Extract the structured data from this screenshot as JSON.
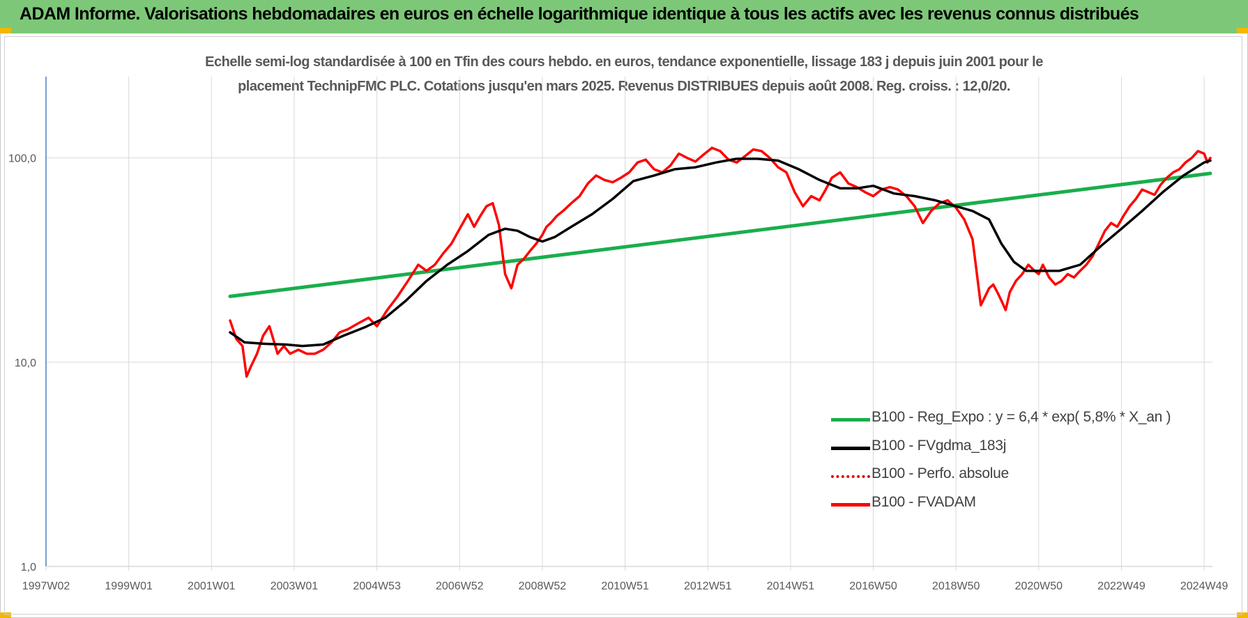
{
  "banner": {
    "title": "ADAM Informe. Valorisations hebdomadaires en euros en échelle logarithmique identique à tous les actifs avec les revenus connus distribués"
  },
  "colors": {
    "banner_bg": "#7dc878",
    "reg_expo": "#1aae4c",
    "fvgdma": "#000000",
    "perfo": "#e00000",
    "fvadam": "#ff0000",
    "grid": "#d9d9d9",
    "axis": "#4a7ebb"
  },
  "chart_data": {
    "type": "line",
    "scale": "log",
    "title": "Echelle semi-log standardisée à 100 en Tfin des cours hebdo. en euros, tendance exponentielle, lissage 183 j depuis juin 2001 pour le",
    "subtitle": "placement TechnipFMC PLC. Cotations jusqu'en mars 2025. Revenus DISTRIBUES depuis août 2008. Reg. croiss. : 12,0/20.",
    "x_unit": "year",
    "xlim": [
      1997.0,
      2025.2
    ],
    "ylim": [
      1,
      250
    ],
    "y_ticks": [
      {
        "value": 1,
        "label": "1,0"
      },
      {
        "value": 10,
        "label": "10,0"
      },
      {
        "value": 100,
        "label": "100,0"
      }
    ],
    "x_ticks": [
      {
        "value": 1997.0,
        "label": "1997W02"
      },
      {
        "value": 1999.0,
        "label": "1999W01"
      },
      {
        "value": 2001.0,
        "label": "2001W01"
      },
      {
        "value": 2003.0,
        "label": "2003W01"
      },
      {
        "value": 2005.0,
        "label": "2004W53"
      },
      {
        "value": 2007.0,
        "label": "2006W52"
      },
      {
        "value": 2009.0,
        "label": "2008W52"
      },
      {
        "value": 2011.0,
        "label": "2010W51"
      },
      {
        "value": 2013.0,
        "label": "2012W51"
      },
      {
        "value": 2015.0,
        "label": "2014W51"
      },
      {
        "value": 2017.0,
        "label": "2016W50"
      },
      {
        "value": 2019.0,
        "label": "2018W50"
      },
      {
        "value": 2021.0,
        "label": "2020W50"
      },
      {
        "value": 2023.0,
        "label": "2022W49"
      },
      {
        "value": 2025.0,
        "label": "2024W49"
      }
    ],
    "series": [
      {
        "name": "B100 - Reg_Expo : y = 6,4 * exp( 5,8% *  X_an )",
        "color": "#1aae4c",
        "style": "solid",
        "width": 5,
        "x": [
          2001.45,
          2025.15
        ],
        "y": [
          21,
          84
        ]
      },
      {
        "name": "B100 - FVgdma_183j",
        "color": "#000000",
        "style": "solid",
        "width": 3.5,
        "x": [
          2001.45,
          2001.8,
          2002.3,
          2002.8,
          2003.2,
          2003.7,
          2004.2,
          2004.7,
          2005.2,
          2005.7,
          2006.2,
          2006.7,
          2007.2,
          2007.7,
          2008.1,
          2008.4,
          2008.7,
          2009.0,
          2009.3,
          2009.7,
          2010.2,
          2010.7,
          2011.2,
          2011.7,
          2012.2,
          2012.7,
          2013.2,
          2013.7,
          2014.2,
          2014.7,
          2015.2,
          2015.7,
          2016.2,
          2016.6,
          2017.0,
          2017.5,
          2018.0,
          2018.5,
          2019.0,
          2019.4,
          2019.8,
          2020.1,
          2020.4,
          2020.7,
          2021.0,
          2021.5,
          2022.0,
          2022.5,
          2023.0,
          2023.5,
          2024.0,
          2024.5,
          2025.0,
          2025.15
        ],
        "y": [
          14,
          12.5,
          12.3,
          12.2,
          12,
          12.2,
          13.5,
          14.8,
          16.5,
          20,
          25,
          30,
          35,
          42,
          45,
          44,
          41,
          39,
          41,
          46,
          53,
          63,
          77,
          82,
          88,
          90,
          95,
          99,
          99,
          97,
          88,
          78,
          71,
          71,
          73,
          67,
          65,
          62,
          58,
          55,
          50,
          38,
          31,
          28,
          28,
          28,
          30,
          37,
          45,
          55,
          68,
          82,
          95,
          97
        ]
      },
      {
        "name": "B100 - Perfo. absolue",
        "color": "#e00000",
        "style": "dotted",
        "width": 3,
        "x": [],
        "y": []
      },
      {
        "name": "B100 - FVADAM",
        "color": "#ff0000",
        "style": "solid",
        "width": 3.5,
        "x": [
          2001.45,
          2001.6,
          2001.75,
          2001.85,
          2001.95,
          2002.1,
          2002.25,
          2002.4,
          2002.6,
          2002.75,
          2002.9,
          2003.1,
          2003.3,
          2003.5,
          2003.7,
          2003.9,
          2004.1,
          2004.3,
          2004.55,
          2004.8,
          2005.0,
          2005.25,
          2005.5,
          2005.75,
          2006.0,
          2006.2,
          2006.4,
          2006.6,
          2006.8,
          2007.0,
          2007.2,
          2007.35,
          2007.5,
          2007.65,
          2007.8,
          2007.95,
          2008.1,
          2008.25,
          2008.4,
          2008.55,
          2008.7,
          2008.85,
          2009.0,
          2009.1,
          2009.2,
          2009.35,
          2009.5,
          2009.7,
          2009.9,
          2010.1,
          2010.3,
          2010.5,
          2010.7,
          2010.9,
          2011.1,
          2011.3,
          2011.5,
          2011.7,
          2011.9,
          2012.1,
          2012.3,
          2012.5,
          2012.7,
          2012.9,
          2013.1,
          2013.3,
          2013.5,
          2013.7,
          2013.9,
          2014.1,
          2014.3,
          2014.5,
          2014.7,
          2014.9,
          2015.1,
          2015.3,
          2015.5,
          2015.7,
          2015.85,
          2016.0,
          2016.2,
          2016.4,
          2016.6,
          2016.8,
          2017.0,
          2017.2,
          2017.4,
          2017.6,
          2017.8,
          2018.0,
          2018.2,
          2018.4,
          2018.6,
          2018.8,
          2019.0,
          2019.2,
          2019.4,
          2019.6,
          2019.8,
          2019.9,
          2020.0,
          2020.1,
          2020.2,
          2020.3,
          2020.45,
          2020.6,
          2020.75,
          2020.9,
          2021.0,
          2021.1,
          2021.25,
          2021.4,
          2021.55,
          2021.7,
          2021.85,
          2022.0,
          2022.15,
          2022.3,
          2022.45,
          2022.6,
          2022.75,
          2022.9,
          2023.05,
          2023.2,
          2023.35,
          2023.5,
          2023.65,
          2023.8,
          2023.95,
          2024.1,
          2024.25,
          2024.4,
          2024.55,
          2024.7,
          2024.85,
          2025.0,
          2025.08,
          2025.15
        ],
        "y": [
          16,
          13,
          12,
          8.5,
          9.5,
          11,
          13.5,
          15,
          11,
          12,
          11,
          11.5,
          11,
          11,
          11.5,
          12.5,
          14,
          14.5,
          15.5,
          16.5,
          15,
          18,
          21,
          25,
          30,
          28,
          30,
          34,
          38,
          45,
          53,
          46,
          52,
          58,
          60,
          47,
          27,
          23,
          30,
          32,
          35,
          38,
          42,
          46,
          48,
          52,
          55,
          60,
          65,
          75,
          82,
          78,
          76,
          80,
          85,
          95,
          98,
          88,
          85,
          92,
          105,
          100,
          96,
          104,
          112,
          108,
          98,
          95,
          102,
          110,
          108,
          100,
          90,
          85,
          68,
          58,
          65,
          62,
          70,
          80,
          85,
          75,
          72,
          68,
          65,
          70,
          72,
          70,
          65,
          58,
          48,
          55,
          60,
          62,
          57,
          50,
          40,
          19,
          23,
          24,
          22,
          20,
          18,
          22,
          25,
          27,
          30,
          28,
          27,
          30,
          26,
          24,
          25,
          27,
          26,
          28,
          30,
          33,
          38,
          44,
          48,
          46,
          52,
          58,
          63,
          70,
          68,
          66,
          74,
          80,
          85,
          88,
          95,
          100,
          108,
          105,
          95,
          100
        ]
      }
    ]
  }
}
